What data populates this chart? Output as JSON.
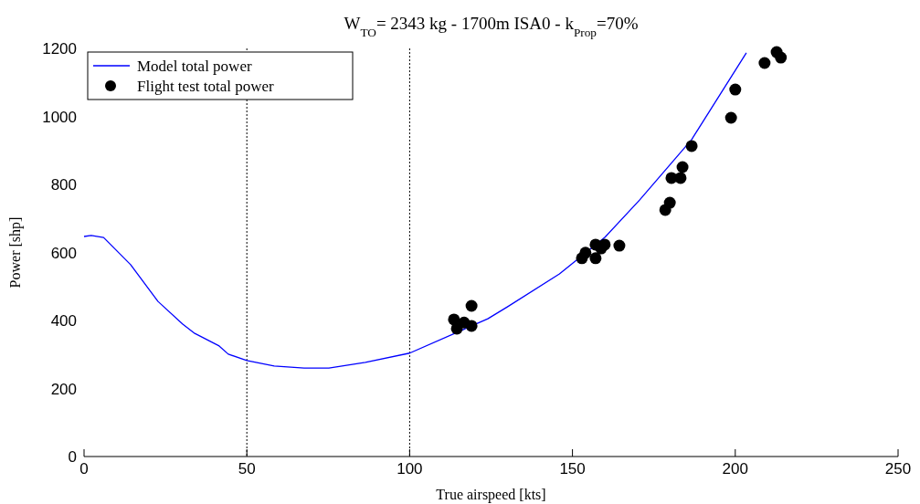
{
  "chart_data": {
    "type": "line",
    "title": "W$_{TO}$= 2343 kg - 1700m ISA0 - k$_{Prop}$=70%",
    "xlabel": "True airspeed [kts]",
    "ylabel": "Power [shp]",
    "xlim": [
      0,
      250
    ],
    "ylim": [
      0,
      1200
    ],
    "xticks": [
      0,
      50,
      100,
      150,
      200,
      250
    ],
    "yticks": [
      0,
      200,
      400,
      600,
      800,
      1000,
      1200
    ],
    "grid": false,
    "legend": "top left",
    "ref_lines": [
      {
        "axis": "x",
        "value": 50,
        "color": "#000000",
        "line_style": "dotted"
      },
      {
        "axis": "x",
        "value": 100,
        "color": "#000000",
        "line_style": "dotted"
      }
    ],
    "series": [
      {
        "name": "Model total power",
        "color": "#0000ff",
        "marker": "none",
        "line_style": "solid",
        "x": [
          0,
          2.2,
          6,
          14.3,
          22.7,
          30.3,
          34,
          41.5,
          44.3,
          50,
          58.4,
          67.6,
          75.2,
          86.4,
          100,
          124,
          130,
          146,
          160,
          170.6,
          186.6,
          203.4
        ],
        "values": [
          647,
          650,
          644,
          564,
          456,
          389,
          362,
          325,
          301,
          282,
          266,
          260,
          260,
          277,
          304,
          405,
          440,
          537,
          645,
          754,
          932,
          1187
        ]
      },
      {
        "name": "Flight test total power",
        "type": "scatter",
        "color": "#000000",
        "marker": "circle",
        "x": [
          113.6,
          114.5,
          116.7,
          119,
          119,
          152.9,
          154,
          157.1,
          157.1,
          158.8,
          159.9,
          164.4,
          178.5,
          179.9,
          180.4,
          183.2,
          183.8,
          186.6,
          198.7,
          200,
          209,
          212.7,
          214
        ],
        "values": [
          403,
          376,
          394,
          384,
          443,
          583,
          599,
          623,
          583,
          612,
          623,
          620,
          725,
          746,
          819,
          819,
          851,
          913,
          996,
          1079,
          1157,
          1189,
          1173
        ]
      }
    ]
  }
}
